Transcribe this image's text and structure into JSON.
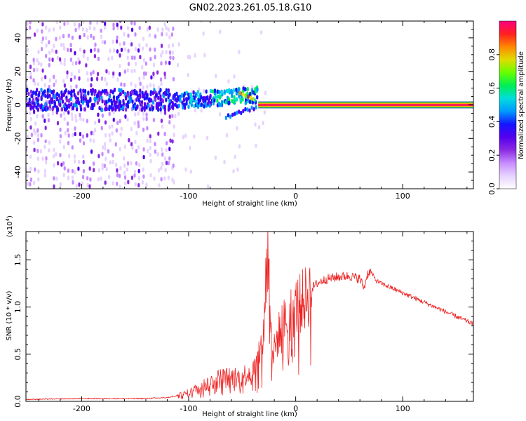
{
  "figure": {
    "title": "GN02.2023.261.05.18.G10"
  },
  "chart_data": [
    {
      "type": "heatmap",
      "title": "GN02.2023.261.05.18.G10",
      "xlabel": "Height of straight line (km)",
      "ylabel": "Frequency (Hz)",
      "xlim": [
        -252,
        166
      ],
      "ylim": [
        -50,
        50
      ],
      "xticks": [
        -200,
        -100,
        0,
        100
      ],
      "xtick_labels": [
        "-200",
        "-100",
        "0",
        "100"
      ],
      "yticks": [
        -40,
        -20,
        0,
        20,
        40
      ],
      "ytick_labels": [
        "-40",
        "-20",
        "0",
        "20",
        "40"
      ],
      "colorbar": {
        "label": "Normalized spectral amplitude",
        "range": [
          0,
          1
        ],
        "ticks": [
          0,
          0.2,
          0.4,
          0.6,
          0.8
        ],
        "tick_labels": [
          "0.0",
          "0.2",
          "0.4",
          "0.6",
          "0.8"
        ],
        "colormap": [
          "#ffffff",
          "#e6d3ff",
          "#c78cff",
          "#8a2be2",
          "#5500ee",
          "#1515ff",
          "#0099ff",
          "#00dddd",
          "#00ee55",
          "#66ff00",
          "#dddd00",
          "#ff8800",
          "#ff2020",
          "#ff0080"
        ]
      },
      "features": {
        "noise_region_km": [
          -252,
          -115
        ],
        "main_band_center_hz": 3,
        "main_band_width_hz": 12,
        "lower_branch_hz": -7,
        "upper_branch_peak_hz": 7,
        "merge_height_km": -35,
        "carrier_line_hz": 0,
        "carrier_start_km": -35
      }
    },
    {
      "type": "line",
      "xlabel": "Height of straight line (km)",
      "ylabel": "SNR (10 * v/v)",
      "scale_label": "(x10^4)",
      "scale_base": "(x10",
      "scale_exp": "4",
      "scale_close": ")",
      "xlim": [
        -252,
        166
      ],
      "ylim": [
        0,
        1.8
      ],
      "xticks": [
        -200,
        -100,
        0,
        100
      ],
      "xtick_labels": [
        "-200",
        "-100",
        "0",
        "100"
      ],
      "yticks": [
        0,
        0.5,
        1,
        1.5
      ],
      "ytick_labels": [
        "0.0",
        "0.5",
        "1.0",
        "1.5"
      ],
      "color": "#ee2222",
      "series": [
        {
          "name": "SNR",
          "x": [
            -252,
            -230,
            -200,
            -170,
            -140,
            -120,
            -110,
            -100,
            -90,
            -80,
            -70,
            -60,
            -50,
            -45,
            -40,
            -35,
            -30,
            -28,
            -26,
            -24,
            -22,
            -20,
            -15,
            -10,
            -5,
            0,
            5,
            10,
            15,
            20,
            25,
            30,
            40,
            50,
            60,
            64,
            67,
            70,
            75,
            80,
            90,
            100,
            110,
            120,
            130,
            140,
            150,
            166
          ],
          "y": [
            0.02,
            0.025,
            0.03,
            0.03,
            0.03,
            0.04,
            0.06,
            0.09,
            0.15,
            0.2,
            0.25,
            0.25,
            0.26,
            0.3,
            0.33,
            0.45,
            0.7,
            1.3,
            1.55,
            1.1,
            0.5,
            0.55,
            0.75,
            0.85,
            0.93,
            1.0,
            1.05,
            1.1,
            1.2,
            1.25,
            1.28,
            1.3,
            1.32,
            1.33,
            1.3,
            1.2,
            1.35,
            1.38,
            1.28,
            1.25,
            1.2,
            1.15,
            1.1,
            1.05,
            1.0,
            0.95,
            0.9,
            0.82
          ]
        }
      ]
    }
  ]
}
